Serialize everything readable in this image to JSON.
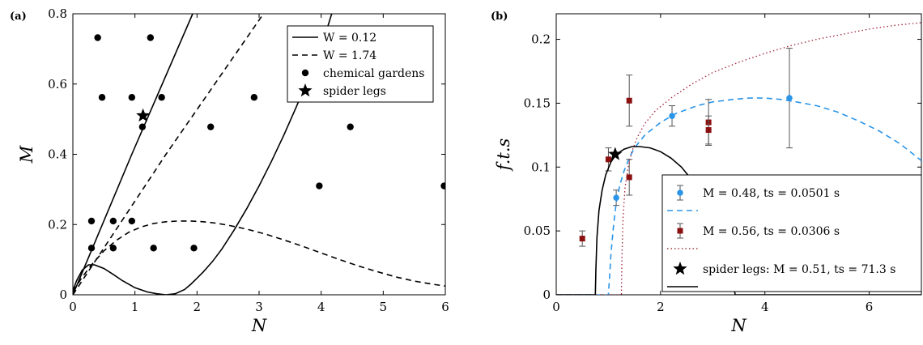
{
  "chart_data": [
    {
      "type": "line",
      "panel_label": "(a)",
      "xlabel": "N",
      "ylabel": "M",
      "xlim": [
        0,
        6
      ],
      "ylim": [
        0,
        0.8
      ],
      "xticks": [
        "0",
        "1",
        "2",
        "3",
        "4",
        "5",
        "6"
      ],
      "yticks": [
        "0",
        "0.2",
        "0.4",
        "0.6",
        "0.8"
      ],
      "grid": false,
      "legend_position": "top-right",
      "series": [
        {
          "name": "W = 0.12",
          "style": "solid",
          "lines": [
            {
              "x": [
                0,
                0.95,
                1.93
              ],
              "y": [
                0,
                0.4,
                0.8
              ]
            },
            {
              "x": [
                0,
                0.06,
                0.15,
                0.25,
                0.35,
                0.5,
                0.65,
                0.8,
                1.0,
                1.2,
                1.35,
                1.5,
                1.65,
                1.8,
                1.9,
                2.0,
                2.1,
                2.25,
                2.4,
                2.6,
                2.8,
                3.0,
                3.2,
                3.4,
                3.6,
                3.8,
                4.0,
                4.1,
                4.17
              ],
              "y": [
                0.012,
                0.04,
                0.07,
                0.085,
                0.085,
                0.075,
                0.058,
                0.04,
                0.02,
                0.008,
                0.003,
                0,
                0.003,
                0.015,
                0.03,
                0.047,
                0.065,
                0.095,
                0.13,
                0.185,
                0.245,
                0.31,
                0.38,
                0.455,
                0.535,
                0.62,
                0.71,
                0.76,
                0.8
              ]
            }
          ]
        },
        {
          "name": "W = 1.74",
          "style": "dashed",
          "lines": [
            {
              "x": [
                0,
                1.5,
                3.07
              ],
              "y": [
                0,
                0.4,
                0.8
              ]
            },
            {
              "x": [
                0,
                0.15,
                0.3,
                0.5,
                0.7,
                0.9,
                1.1,
                1.3,
                1.5,
                1.7,
                1.9,
                2.1,
                2.3,
                2.5,
                2.8,
                3.1,
                3.4,
                3.7,
                4.0,
                4.3,
                4.6,
                4.9,
                5.2,
                5.5,
                5.8,
                6.0
              ],
              "y": [
                0.01,
                0.05,
                0.085,
                0.125,
                0.155,
                0.178,
                0.193,
                0.203,
                0.208,
                0.21,
                0.21,
                0.208,
                0.204,
                0.198,
                0.187,
                0.173,
                0.156,
                0.138,
                0.119,
                0.1,
                0.082,
                0.066,
                0.051,
                0.039,
                0.03,
                0.025
              ]
            }
          ]
        },
        {
          "name": "chemical gardens",
          "style": "scatter-dot",
          "x": [
            0.4,
            1.25,
            0.47,
            0.95,
            1.43,
            2.92,
            1.12,
            2.22,
            4.47,
            3.97,
            5.98,
            0.3,
            0.65,
            0.95,
            0.3,
            0.65,
            1.3,
            1.95
          ],
          "y": [
            0.732,
            0.732,
            0.562,
            0.562,
            0.562,
            0.562,
            0.478,
            0.478,
            0.478,
            0.31,
            0.31,
            0.21,
            0.21,
            0.21,
            0.133,
            0.133,
            0.133,
            0.133
          ]
        },
        {
          "name": "spider legs",
          "style": "scatter-star",
          "x": [
            1.13
          ],
          "y": [
            0.51
          ]
        }
      ]
    },
    {
      "type": "line",
      "panel_label": "(b)",
      "xlabel": "N",
      "ylabel": "f.t.s",
      "xlim": [
        0,
        7
      ],
      "ylim": [
        0,
        0.22
      ],
      "xticks": [
        "0",
        "2",
        "4",
        "6"
      ],
      "yticks": [
        "0",
        "0.05",
        "0.1",
        "0.15",
        "0.2"
      ],
      "grid": false,
      "legend_position": "bottom-right",
      "series": [
        {
          "name": "M = 0.48, ts = 0.0501 s",
          "style": "errorbar-dot",
          "color": "#2b95e8",
          "x": [
            1.15,
            2.22,
            4.47
          ],
          "y": [
            0.076,
            0.14,
            0.154
          ],
          "err": [
            0.006,
            0.008,
            0.039
          ]
        },
        {
          "name": "fit M = 0.48",
          "style": "dashed",
          "color": "#2b95e8",
          "x": [
            0,
            1.0,
            1.02,
            1.05,
            1.1,
            1.15,
            1.22,
            1.3,
            1.4,
            1.5,
            1.7,
            2.0,
            2.3,
            2.7,
            3.0,
            3.4,
            3.7,
            4.0,
            4.3,
            4.6,
            5.0,
            5.4,
            5.8,
            6.2,
            6.6,
            7.0
          ],
          "y": [
            0,
            0,
            0.012,
            0.032,
            0.055,
            0.072,
            0.086,
            0.097,
            0.107,
            0.115,
            0.125,
            0.135,
            0.142,
            0.148,
            0.151,
            0.153,
            0.154,
            0.154,
            0.153,
            0.151,
            0.148,
            0.143,
            0.136,
            0.128,
            0.118,
            0.105
          ]
        },
        {
          "name": "M = 0.56, ts = 0.0306 s",
          "style": "errorbar-square",
          "color": "#8b1010",
          "x": [
            0.5,
            1.0,
            1.4,
            1.4,
            2.92,
            2.92
          ],
          "y": [
            0.044,
            0.106,
            0.152,
            0.092,
            0.135,
            0.129
          ],
          "err": [
            0.006,
            0.009,
            0.02,
            0.014,
            0.018,
            0.011
          ]
        },
        {
          "name": "fit M = 0.56",
          "style": "dotted",
          "color": "#a0203a",
          "x": [
            0,
            1.25,
            1.26,
            1.28,
            1.32,
            1.38,
            1.45,
            1.55,
            1.7,
            1.9,
            2.2,
            2.6,
            3.0,
            3.5,
            4.0,
            4.5,
            5.0,
            5.5,
            6.0,
            6.5,
            7.0
          ],
          "y": [
            0,
            0,
            0.03,
            0.06,
            0.084,
            0.1,
            0.112,
            0.123,
            0.134,
            0.144,
            0.154,
            0.165,
            0.174,
            0.182,
            0.189,
            0.195,
            0.2,
            0.204,
            0.208,
            0.211,
            0.213
          ]
        },
        {
          "name": "spider legs: M = 0.51, ts = 71.3 s",
          "style": "scatter-star",
          "color": "#000000",
          "x": [
            1.13
          ],
          "y": [
            0.11
          ]
        },
        {
          "name": "fit spider legs",
          "style": "solid",
          "color": "#000000",
          "x": [
            0,
            0.75,
            0.76,
            0.78,
            0.82,
            0.88,
            0.95,
            1.05,
            1.15,
            1.3,
            1.45,
            1.6,
            1.8,
            2.0,
            2.2,
            2.4,
            2.6,
            2.8,
            3.0,
            3.2,
            3.35,
            3.42,
            3.43,
            7.0
          ],
          "y": [
            0,
            0,
            0.02,
            0.045,
            0.066,
            0.082,
            0.094,
            0.104,
            0.11,
            0.114,
            0.116,
            0.116,
            0.115,
            0.112,
            0.107,
            0.1,
            0.09,
            0.077,
            0.06,
            0.04,
            0.018,
            0.003,
            0,
            0
          ]
        }
      ],
      "legend": [
        {
          "label": "M = 0.48, ts = 0.0501 s",
          "marker": "errorbar-dot",
          "line": "dashed",
          "color": "#2b95e8"
        },
        {
          "label": "M = 0.56, ts = 0.0306 s",
          "marker": "errorbar-square",
          "line": "dotted",
          "color": "#8b1010"
        },
        {
          "label": "spider legs: M = 0.51, ts = 71.3 s",
          "marker": "star",
          "line": "solid",
          "color": "#000000"
        }
      ]
    }
  ]
}
